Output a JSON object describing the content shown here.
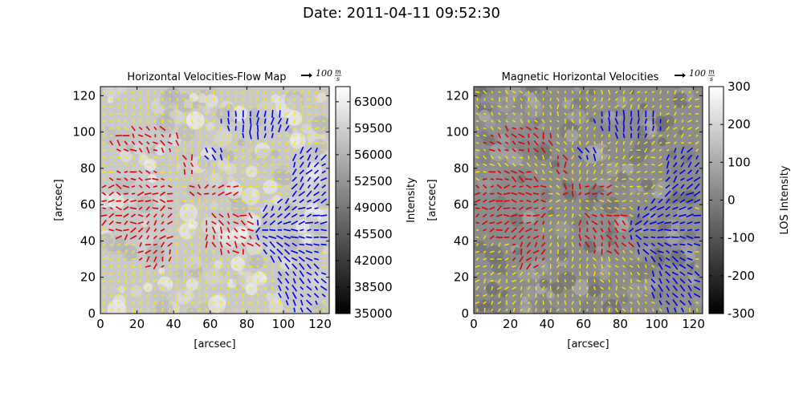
{
  "figure": {
    "suptitle": "Date: 2011-04-11 09:52:30"
  },
  "colors": {
    "positive_flow": "#e00000",
    "negative_flow": "#0000e6",
    "neutral_flow": "#ffe800",
    "background": "#ffffff"
  },
  "chart_data": [
    {
      "type": "heatmap",
      "title": "Horizontal Velocities-Flow Map",
      "xlabel": "[arcsec]",
      "ylabel": "[arcsec]",
      "xlim": [
        0,
        125
      ],
      "ylim": [
        0,
        125
      ],
      "xticks": [
        "0",
        "20",
        "40",
        "60",
        "80",
        "100",
        "120"
      ],
      "yticks": [
        "0",
        "20",
        "40",
        "60",
        "80",
        "100",
        "120"
      ],
      "quiver_key": "100m/s",
      "quiver_key_label": {
        "base": "100",
        "num": "m",
        "den": "s"
      },
      "colorbar": {
        "label": "Intensity",
        "range": [
          35000,
          65000
        ],
        "ticks": [
          "35000",
          "38500",
          "42000",
          "45500",
          "49000",
          "52500",
          "56000",
          "59500",
          "63000"
        ],
        "colormap": "gray"
      },
      "overlay": "velocity vectors (quiver)",
      "vector_colors": [
        "red",
        "blue",
        "yellow"
      ]
    },
    {
      "type": "heatmap",
      "title": "Magnetic Horizontal Velocities",
      "xlabel": "[arcsec]",
      "ylabel": "[arcsec]",
      "xlim": [
        0,
        125
      ],
      "ylim": [
        0,
        125
      ],
      "xticks": [
        "0",
        "20",
        "40",
        "60",
        "80",
        "100",
        "120"
      ],
      "yticks": [
        "0",
        "20",
        "40",
        "60",
        "80",
        "100",
        "120"
      ],
      "quiver_key": "100m/s",
      "quiver_key_label": {
        "base": "100",
        "num": "m",
        "den": "s"
      },
      "colorbar": {
        "label": "LOS Intensity",
        "range": [
          -300,
          300
        ],
        "ticks": [
          "-300",
          "-200",
          "-100",
          "0",
          "100",
          "200",
          "300"
        ],
        "colormap": "gray"
      },
      "overlay": "velocity vectors (quiver)",
      "vector_colors": [
        "red",
        "blue",
        "yellow"
      ]
    }
  ]
}
